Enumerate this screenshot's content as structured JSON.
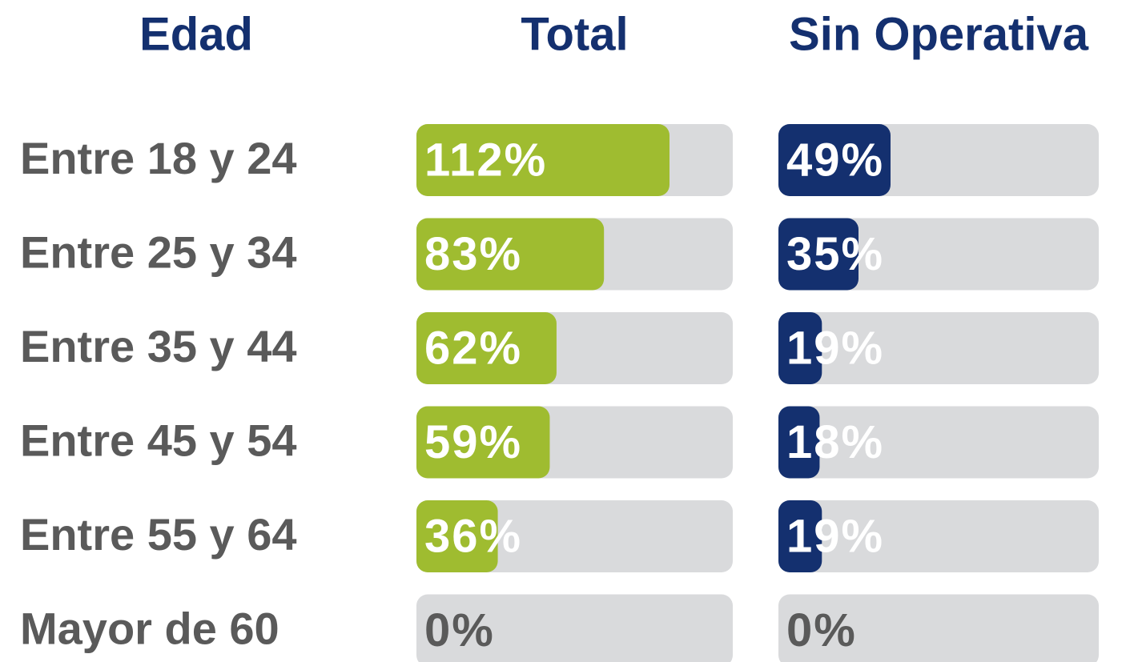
{
  "chart_data": {
    "type": "bar",
    "orientation": "horizontal",
    "category_title": "Edad",
    "categories": [
      "Entre 18 y 24",
      "Entre 25 y 34",
      "Entre 35 y 44",
      "Entre 45 y 54",
      "Entre 55 y 64",
      "Mayor de 60"
    ],
    "series": [
      {
        "name": "Total",
        "color": "#9fbc30",
        "values": [
          112,
          83,
          62,
          59,
          36,
          0
        ],
        "value_labels": [
          "112%",
          "83%",
          "62%",
          "59%",
          "36%",
          "0%"
        ]
      },
      {
        "name": "Sin Operativa",
        "color": "#14306f",
        "values": [
          49,
          35,
          19,
          18,
          19,
          0
        ],
        "value_labels": [
          "49%",
          "35%",
          "19%",
          "18%",
          "19%",
          "0%"
        ]
      }
    ],
    "xlim": [
      0,
      140
    ]
  }
}
